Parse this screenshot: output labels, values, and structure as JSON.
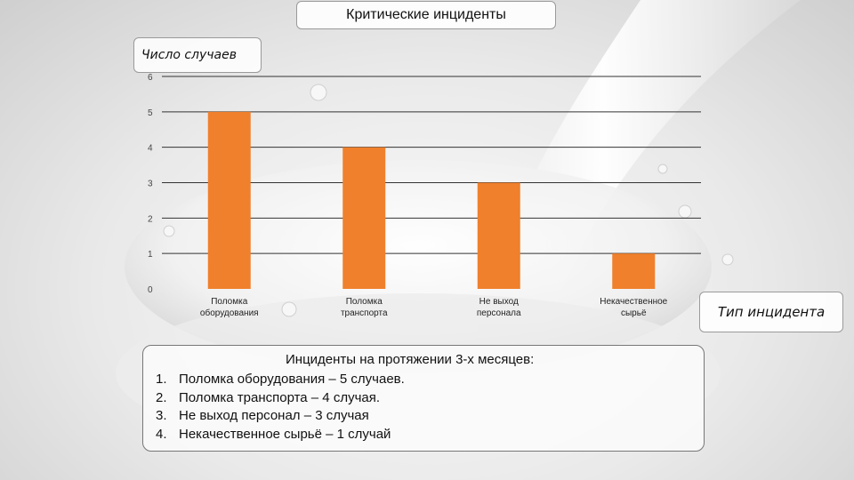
{
  "title": "Критические инциденты",
  "chart_data": {
    "type": "bar",
    "ylabel": "Число случаев",
    "xlabel": "Тип инцидента",
    "ylim": [
      0,
      6
    ],
    "yticks": [
      "0",
      "1",
      "2",
      "3",
      "4",
      "5",
      "6"
    ],
    "grid": true,
    "bar_color": "#f0802c",
    "categories": [
      [
        "Поломка",
        "оборудования"
      ],
      [
        "Поломка",
        "транспорта"
      ],
      [
        "Не выход",
        "персонала"
      ],
      [
        "Некачественное",
        "сырьё"
      ]
    ],
    "values": [
      5,
      4,
      3,
      1
    ]
  },
  "info": {
    "heading": "Инциденты на протяжении 3-х месяцев:",
    "items": [
      {
        "num": "1.",
        "text": "Поломка оборудования – 5 случаев."
      },
      {
        "num": "2.",
        "text": "Поломка транспорта – 4 случая."
      },
      {
        "num": "3.",
        "text": "Не выход персонал – 3 случая"
      },
      {
        "num": "4.",
        "text": "Некачественное сырьё – 1 случай"
      }
    ]
  }
}
